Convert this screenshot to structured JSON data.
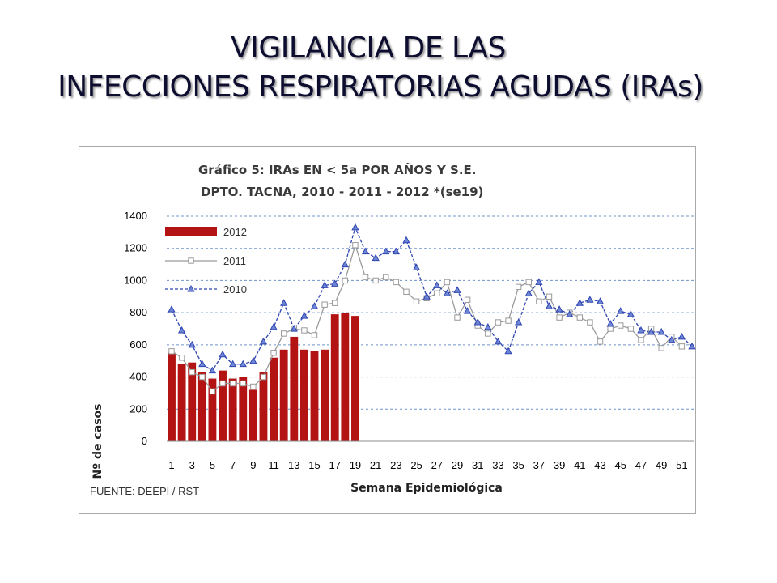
{
  "slide": {
    "title_line1": "VIGILANCIA DE LAS",
    "title_line2": "INFECCIONES RESPIRATORIAS AGUDAS (IRAs)"
  },
  "chart_data": {
    "type": "bar+line",
    "title_line1": "Gráfico 5: IRAs  EN < 5a POR AÑOS Y S.E.",
    "title_line2": "DPTO. TACNA, 2010 - 2011 -  2012 *(se19)",
    "xlabel": "Semana Epidemiológica",
    "ylabel": "Nº de casos",
    "ylim": [
      0,
      1400
    ],
    "yticks": [
      0,
      200,
      400,
      600,
      800,
      1000,
      1200,
      1400
    ],
    "xticks": [
      1,
      3,
      5,
      7,
      9,
      11,
      13,
      15,
      17,
      19,
      21,
      23,
      25,
      27,
      29,
      31,
      33,
      35,
      37,
      39,
      41,
      43,
      45,
      47,
      49,
      51
    ],
    "x_range": [
      1,
      52
    ],
    "grid": "horizontal dashed",
    "legend_position": "top-left",
    "source": "FUENTE: DEEPI / RST",
    "series": [
      {
        "name": "2012",
        "kind": "bar",
        "color": "#b31313",
        "values": [
          550,
          480,
          490,
          430,
          390,
          440,
          390,
          400,
          320,
          430,
          520,
          570,
          650,
          570,
          560,
          570,
          790,
          800,
          780
        ]
      },
      {
        "name": "2011",
        "kind": "line",
        "color": "#9a9a9a",
        "marker": "square",
        "values": [
          560,
          520,
          430,
          400,
          310,
          360,
          360,
          360,
          340,
          400,
          550,
          670,
          700,
          690,
          660,
          850,
          860,
          1000,
          1220,
          1020,
          1000,
          1020,
          990,
          930,
          870,
          890,
          920,
          990,
          770,
          880,
          720,
          670,
          740,
          750,
          960,
          990,
          870,
          900,
          770,
          800,
          770,
          740,
          620,
          700,
          720,
          700,
          630,
          700,
          580,
          650,
          590
        ]
      },
      {
        "name": "2010",
        "kind": "line",
        "color": "#2f45b0",
        "marker": "triangle",
        "dashed": true,
        "values": [
          820,
          690,
          600,
          480,
          440,
          540,
          480,
          480,
          500,
          620,
          710,
          860,
          700,
          780,
          840,
          970,
          980,
          1100,
          1330,
          1180,
          1140,
          1180,
          1180,
          1250,
          1080,
          900,
          970,
          920,
          940,
          810,
          740,
          710,
          620,
          560,
          740,
          920,
          990,
          840,
          820,
          790,
          860,
          880,
          870,
          730,
          810,
          790,
          690,
          680,
          680,
          630,
          650,
          590
        ]
      }
    ]
  }
}
